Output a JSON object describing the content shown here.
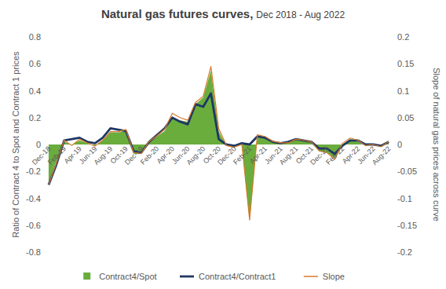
{
  "chart_data": {
    "type": "line",
    "title": "Natural gas futures curves,",
    "subtitle": "Dec 2018 - Aug 2022",
    "y_label": "Ratio of Contract 4 to Spot and Contract 1 prices",
    "y2_label": "Slope of natural gas prices across curve",
    "categories": [
      "Dec-18",
      null,
      "Feb-19",
      null,
      "Apr-19",
      null,
      "Jun-19",
      null,
      "Aug-19",
      null,
      "Oct-19",
      null,
      "Dec-19",
      null,
      "Feb-20",
      null,
      "Apr-20",
      null,
      "Jun-20",
      null,
      "Aug-20",
      null,
      "Oct-20",
      null,
      "Dec-20",
      null,
      "Feb-21",
      null,
      "Apr-21",
      null,
      "Jun-21",
      null,
      "Aug-21",
      null,
      "Oct-21",
      null,
      "Dec-21",
      null,
      "Feb-22",
      null,
      "Apr-22",
      null,
      "Jun-22",
      null,
      "Aug-22"
    ],
    "series": [
      {
        "name": "Contract4/Spot",
        "type": "area",
        "color": "#6aad3d",
        "values": [
          -0.28,
          -0.12,
          0.02,
          0.0,
          0.03,
          0.01,
          -0.01,
          0.03,
          0.09,
          0.09,
          0.1,
          -0.07,
          -0.07,
          0.02,
          0.06,
          0.1,
          0.2,
          0.18,
          0.17,
          0.3,
          0.35,
          0.55,
          0.1,
          -0.01,
          -0.02,
          0.0,
          -0.57,
          0.06,
          0.05,
          0.02,
          0.01,
          0.01,
          0.04,
          0.03,
          0.01,
          -0.05,
          -0.06,
          -0.1,
          0.0,
          0.04,
          0.02,
          -0.01,
          0.0,
          -0.02,
          0.02
        ]
      },
      {
        "name": "Contract4/Contract1",
        "type": "line",
        "color": "#1f3864",
        "values": [
          -0.3,
          -0.15,
          0.03,
          0.04,
          0.05,
          0.02,
          0.01,
          0.05,
          0.12,
          0.11,
          0.1,
          -0.05,
          -0.06,
          0.02,
          0.07,
          0.12,
          0.2,
          0.17,
          0.15,
          0.3,
          0.28,
          0.38,
          0.04,
          0.0,
          -0.01,
          0.01,
          0.0,
          0.06,
          0.05,
          0.02,
          0.01,
          0.02,
          0.04,
          0.03,
          0.02,
          -0.03,
          -0.03,
          -0.07,
          -0.01,
          0.03,
          0.03,
          0.0,
          0.0,
          -0.01,
          0.02
        ]
      },
      {
        "name": "Slope",
        "type": "line",
        "color": "#d77a2b",
        "axis": "y2",
        "values": [
          -0.075,
          -0.035,
          0.008,
          -0.002,
          0.01,
          0.003,
          -0.003,
          0.008,
          0.024,
          0.024,
          0.028,
          -0.015,
          -0.017,
          0.006,
          0.016,
          0.028,
          0.058,
          0.05,
          0.045,
          0.078,
          0.09,
          0.145,
          0.03,
          -0.002,
          -0.005,
          0.0,
          -0.14,
          0.018,
          0.015,
          0.006,
          0.003,
          0.003,
          0.01,
          0.008,
          0.005,
          -0.012,
          -0.015,
          -0.028,
          0.002,
          0.012,
          0.008,
          -0.002,
          0.0,
          -0.004,
          0.006
        ]
      }
    ],
    "ylim": [
      -0.8,
      0.8
    ],
    "yticks": [
      -0.8,
      -0.6,
      -0.4,
      -0.2,
      0,
      0.2,
      0.4,
      0.6,
      0.8
    ],
    "y2lim": [
      -0.2,
      0.2
    ],
    "y2ticks": [
      -0.2,
      -0.15,
      -0.1,
      -0.05,
      0,
      0.05,
      0.1,
      0.15,
      0.2
    ],
    "grid": false,
    "legend": "bottom"
  }
}
